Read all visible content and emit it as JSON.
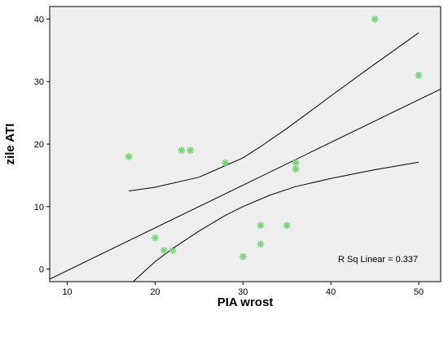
{
  "chart_data": {
    "type": "scatter",
    "xlabel": "PIA wrost",
    "ylabel": "zile ATI",
    "xlim": [
      8,
      52.5
    ],
    "ylim": [
      -2,
      42
    ],
    "xticks": [
      "10",
      "20",
      "30",
      "40",
      "50"
    ],
    "yticks": [
      "0",
      "10",
      "20",
      "30",
      "40"
    ],
    "grid": false,
    "points": [
      {
        "x": 17,
        "y": 18
      },
      {
        "x": 20,
        "y": 5
      },
      {
        "x": 21,
        "y": 3
      },
      {
        "x": 22,
        "y": 3
      },
      {
        "x": 23,
        "y": 19
      },
      {
        "x": 24,
        "y": 19
      },
      {
        "x": 28,
        "y": 17
      },
      {
        "x": 30,
        "y": 2
      },
      {
        "x": 32,
        "y": 7
      },
      {
        "x": 32,
        "y": 4
      },
      {
        "x": 35,
        "y": 7
      },
      {
        "x": 36,
        "y": 17
      },
      {
        "x": 36,
        "y": 16
      },
      {
        "x": 45,
        "y": 40
      },
      {
        "x": 50,
        "y": 31
      }
    ],
    "fit_line": {
      "x": [
        8,
        52.5
      ],
      "y": [
        -1.6,
        28.8
      ]
    },
    "ci_upper": {
      "x": [
        17,
        20,
        25,
        30,
        32,
        35,
        38,
        40,
        45,
        50
      ],
      "y": [
        12.5,
        13.1,
        14.7,
        17.8,
        19.6,
        22.5,
        25.6,
        27.7,
        32.8,
        37.8
      ]
    },
    "ci_lower": {
      "x": [
        17.5,
        20,
        22,
        25,
        28,
        30,
        33,
        36,
        40,
        45,
        50
      ],
      "y": [
        -2,
        1.2,
        3.3,
        6.1,
        8.6,
        10.0,
        11.8,
        13.2,
        14.5,
        15.9,
        17.1
      ]
    },
    "annotation": "R Sq Linear = 0.337",
    "colors": {
      "plot_bg": "#eeeeee",
      "marker": "#7ad27a",
      "line": "#000000"
    }
  }
}
